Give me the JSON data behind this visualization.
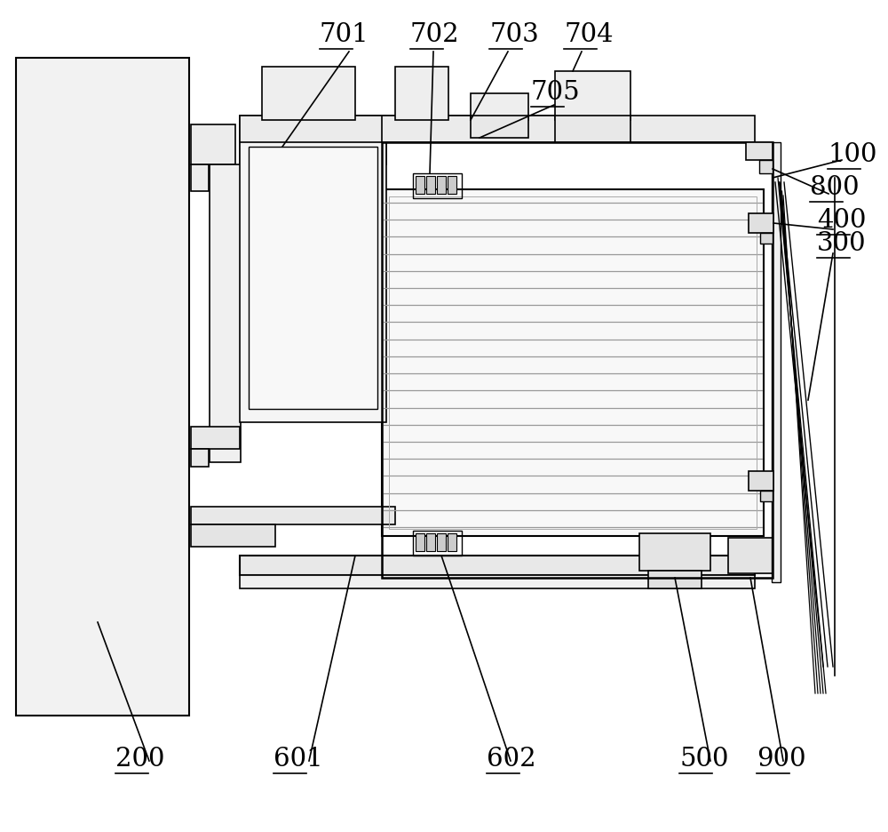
{
  "bg_color": "#ffffff",
  "lc": "#000000",
  "figsize": [
    10.0,
    9.36
  ],
  "dpi": 100,
  "gray1": "#e8e8e8",
  "gray2": "#d0d0d0",
  "gray3": "#b8b8b8"
}
